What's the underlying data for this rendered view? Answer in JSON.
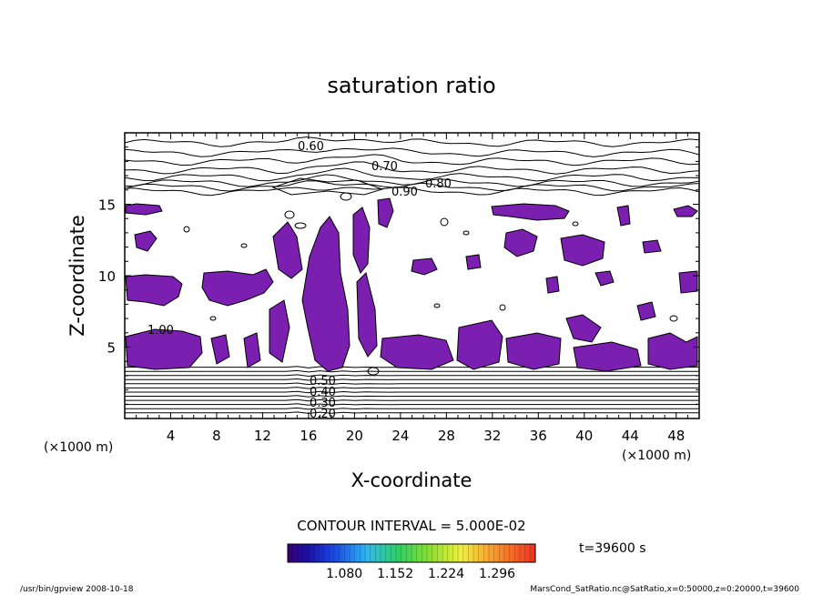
{
  "chart_data": {
    "type": "contour",
    "title": "saturation ratio",
    "xlabel": "X-coordinate",
    "ylabel": "Z-coordinate",
    "x_unit": "(×1000 m)",
    "y_unit": "(×1000 m)",
    "xlim": [
      0,
      50
    ],
    "ylim": [
      0,
      20
    ],
    "x_ticks": [
      "4",
      "8",
      "12",
      "16",
      "20",
      "24",
      "28",
      "32",
      "36",
      "40",
      "44",
      "48"
    ],
    "y_ticks": [
      "5",
      "10",
      "15"
    ],
    "contour_labels": [
      "0.60",
      "0.70",
      "0.80",
      "0.90",
      "1.00",
      "0.20",
      "0.30",
      "0.40",
      "0.50"
    ],
    "contour_interval_text": "CONTOUR INTERVAL = 5.000E-02",
    "colorbar_ticks": [
      "1.080",
      "1.152",
      "1.224",
      "1.296"
    ],
    "shaded_range": [
      1.08,
      1.3
    ],
    "shade_color": "#7a1fb0",
    "time_label": "t=39600 s",
    "footer_left": "/usr/bin/gpview  2008-10-18",
    "footer_right": "MarsCond_SatRatio.nc@SatRatio,x=0:50000,z=0:20000,t=39600"
  }
}
